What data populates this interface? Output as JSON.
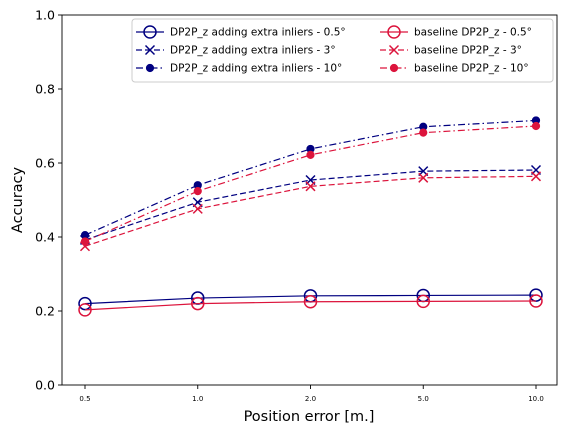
{
  "chart_data": {
    "type": "line",
    "title": "",
    "xlabel": "Position error [m.]",
    "ylabel": "Accuracy",
    "x_categories": [
      "0.5",
      "1.0",
      "2.0",
      "5.0",
      "10.0"
    ],
    "ylim": [
      0.0,
      1.0
    ],
    "yticks": [
      "0.0",
      "0.2",
      "0.4",
      "0.6",
      "0.8",
      "1.0"
    ],
    "grid": false,
    "legend_position": "top-right",
    "series": [
      {
        "name": "DP2P_z adding extra inliers - 0.5°",
        "color": "#000080",
        "linestyle": "solid",
        "marker": "open-circle",
        "values": [
          0.22,
          0.235,
          0.241,
          0.242,
          0.243
        ]
      },
      {
        "name": "DP2P_z adding extra inliers - 3°",
        "color": "#000080",
        "linestyle": "dashed",
        "marker": "x",
        "values": [
          0.392,
          0.494,
          0.554,
          0.578,
          0.581
        ]
      },
      {
        "name": "DP2P_z adding extra inliers - 10°",
        "color": "#000080",
        "linestyle": "dashdot",
        "marker": "filled-circle",
        "values": [
          0.405,
          0.54,
          0.638,
          0.698,
          0.715
        ]
      },
      {
        "name": "baseline DP2P_z - 0.5°",
        "color": "#dc143c",
        "linestyle": "solid",
        "marker": "open-circle",
        "values": [
          0.203,
          0.22,
          0.225,
          0.226,
          0.227
        ]
      },
      {
        "name": "baseline DP2P_z - 3°",
        "color": "#dc143c",
        "linestyle": "dashed",
        "marker": "x",
        "values": [
          0.375,
          0.476,
          0.537,
          0.56,
          0.564
        ]
      },
      {
        "name": "baseline DP2P_z - 10°",
        "color": "#dc143c",
        "linestyle": "dashdot",
        "marker": "filled-circle",
        "values": [
          0.388,
          0.524,
          0.622,
          0.682,
          0.7
        ]
      }
    ]
  }
}
